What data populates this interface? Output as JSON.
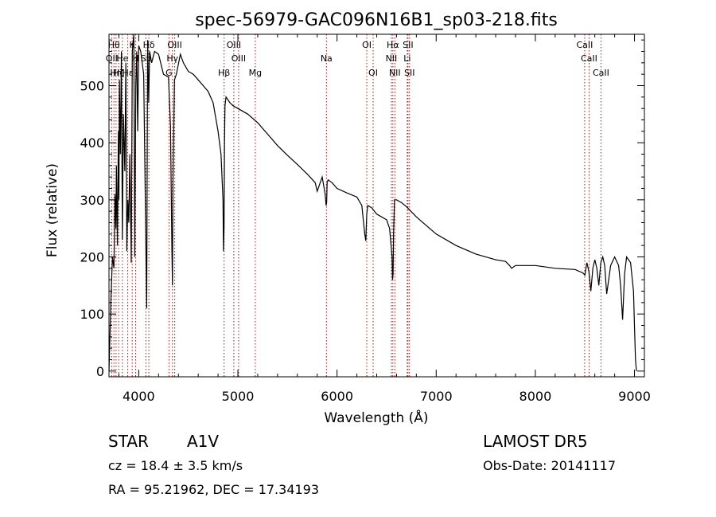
{
  "chart_data": {
    "type": "line",
    "title": "spec-56979-GAC096N16B1_sp03-218.fits",
    "xlabel": "Wavelength (Å)",
    "ylabel": "Flux (relative)",
    "xlim": [
      3700,
      9100
    ],
    "ylim": [
      -10,
      590
    ],
    "x_ticks": [
      4000,
      5000,
      6000,
      7000,
      8000,
      9000
    ],
    "x_tick_labels": [
      "4000",
      "5000",
      "6000",
      "7000",
      "8000",
      "9000"
    ],
    "y_ticks": [
      0,
      100,
      200,
      300,
      400,
      500
    ],
    "y_tick_labels": [
      "0",
      "100",
      "200",
      "300",
      "400",
      "500"
    ],
    "grid": false,
    "series": [
      {
        "color": "#000000",
        "x": [
          3700,
          3720,
          3735,
          3750,
          3760,
          3770,
          3775,
          3785,
          3795,
          3800,
          3805,
          3815,
          3825,
          3835,
          3845,
          3860,
          3870,
          3880,
          3890,
          3900,
          3910,
          3925,
          3935,
          3950,
          3960,
          3970,
          3980,
          3990,
          4000,
          4020,
          4050,
          4080,
          4090,
          4100,
          4110,
          4130,
          4160,
          4200,
          4250,
          4300,
          4320,
          4335,
          4340,
          4345,
          4360,
          4380,
          4420,
          4450,
          4500,
          4550,
          4600,
          4650,
          4700,
          4750,
          4800,
          4830,
          4850,
          4855,
          4860,
          4865,
          4870,
          4880,
          4900,
          4920,
          4950,
          5000,
          5100,
          5200,
          5300,
          5400,
          5500,
          5600,
          5700,
          5780,
          5800,
          5850,
          5880,
          5890,
          5895,
          5900,
          5910,
          5950,
          6000,
          6100,
          6200,
          6250,
          6280,
          6290,
          6300,
          6310,
          6350,
          6400,
          6450,
          6500,
          6530,
          6545,
          6555,
          6560,
          6565,
          6570,
          6580,
          6600,
          6650,
          6700,
          6800,
          6900,
          7000,
          7200,
          7400,
          7600,
          7700,
          7740,
          7760,
          7800,
          8000,
          8200,
          8400,
          8480,
          8500,
          8520,
          8540,
          8560,
          8580,
          8600,
          8620,
          8640,
          8660,
          8680,
          8700,
          8720,
          8760,
          8800,
          8840,
          8860,
          8880,
          8900,
          8920,
          8960,
          8990,
          9000,
          9010,
          9020
        ],
        "y": [
          0,
          130,
          200,
          180,
          310,
          250,
          360,
          220,
          420,
          300,
          510,
          380,
          560,
          230,
          450,
          350,
          540,
          210,
          300,
          260,
          380,
          190,
          560,
          600,
          200,
          500,
          560,
          420,
          570,
          560,
          520,
          110,
          580,
          470,
          560,
          540,
          560,
          555,
          520,
          515,
          430,
          210,
          150,
          330,
          510,
          520,
          555,
          540,
          525,
          520,
          510,
          500,
          490,
          470,
          420,
          380,
          300,
          210,
          250,
          400,
          465,
          480,
          475,
          470,
          465,
          460,
          450,
          435,
          415,
          395,
          378,
          362,
          345,
          330,
          315,
          340,
          310,
          290,
          295,
          330,
          335,
          330,
          320,
          312,
          305,
          290,
          240,
          228,
          275,
          290,
          286,
          275,
          270,
          265,
          250,
          220,
          200,
          160,
          170,
          240,
          300,
          300,
          295,
          288,
          270,
          255,
          240,
          220,
          205,
          195,
          192,
          185,
          180,
          185,
          185,
          180,
          178,
          172,
          168,
          190,
          175,
          140,
          180,
          195,
          180,
          150,
          190,
          200,
          185,
          135,
          185,
          200,
          185,
          150,
          90,
          170,
          200,
          190,
          140,
          80,
          20,
          0
        ]
      }
    ],
    "spectral_lines": [
      {
        "x": 3727,
        "label": "OII",
        "row": 1
      },
      {
        "x": 3750,
        "label": "Hθ",
        "row": 0
      },
      {
        "x": 3771,
        "label": "Hη",
        "row": 2
      },
      {
        "x": 3798,
        "label": "Hζ",
        "row": 2
      },
      {
        "x": 3835,
        "label": "He",
        "row": 1
      },
      {
        "x": 3889,
        "label": "Hε",
        "row": 2
      },
      {
        "x": 3934,
        "label": "K",
        "row": 0
      },
      {
        "x": 3969,
        "label": "H",
        "row": 1
      },
      {
        "x": 4072,
        "label": "SII",
        "row": 1
      },
      {
        "x": 4102,
        "label": "Hδ",
        "row": 0
      },
      {
        "x": 4305,
        "label": "G",
        "row": 2
      },
      {
        "x": 4340,
        "label": "Hγ",
        "row": 1
      },
      {
        "x": 4363,
        "label": "OIII",
        "row": 0
      },
      {
        "x": 4861,
        "label": "Hβ",
        "row": 2
      },
      {
        "x": 4959,
        "label": "OIII",
        "row": 0
      },
      {
        "x": 5007,
        "label": "OIII",
        "row": 1
      },
      {
        "x": 5175,
        "label": "Mg",
        "row": 2
      },
      {
        "x": 5893,
        "label": "Na",
        "row": 1
      },
      {
        "x": 6300,
        "label": "OI",
        "row": 0
      },
      {
        "x": 6364,
        "label": "OI",
        "row": 2
      },
      {
        "x": 6548,
        "label": "NII",
        "row": 1
      },
      {
        "x": 6563,
        "label": "Hα",
        "row": 0
      },
      {
        "x": 6583,
        "label": "NII",
        "row": 2
      },
      {
        "x": 6708,
        "label": "Li",
        "row": 1
      },
      {
        "x": 6716,
        "label": "SII",
        "row": 0
      },
      {
        "x": 6731,
        "label": "SII",
        "row": 2
      },
      {
        "x": 8498,
        "label": "CaII",
        "row": 0
      },
      {
        "x": 8542,
        "label": "CaII",
        "row": 1
      },
      {
        "x": 8662,
        "label": "CaII",
        "row": 2
      }
    ]
  },
  "info": {
    "object_class": "STAR",
    "subclass": "A1V",
    "survey": "LAMOST DR5",
    "cz": "cz = 18.4 ± 3.5 km/s",
    "obs_date": "Obs-Date: 20141117",
    "coords": "RA =  95.21962, DEC =  17.34193"
  }
}
